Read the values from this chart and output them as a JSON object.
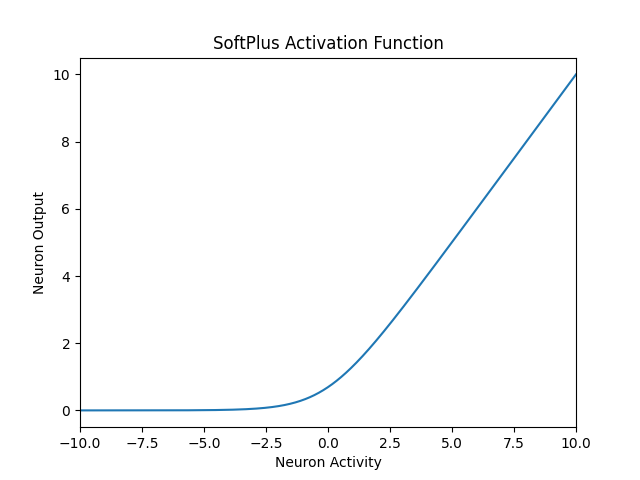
{
  "title": "SoftPlus Activation Function",
  "xlabel": "Neuron Activity",
  "ylabel": "Neuron Output",
  "x_min": -10,
  "x_max": 10,
  "line_color": "#1f77b4",
  "line_width": 1.5,
  "num_points": 1000,
  "figwidth": 6.4,
  "figheight": 4.8,
  "dpi": 100
}
